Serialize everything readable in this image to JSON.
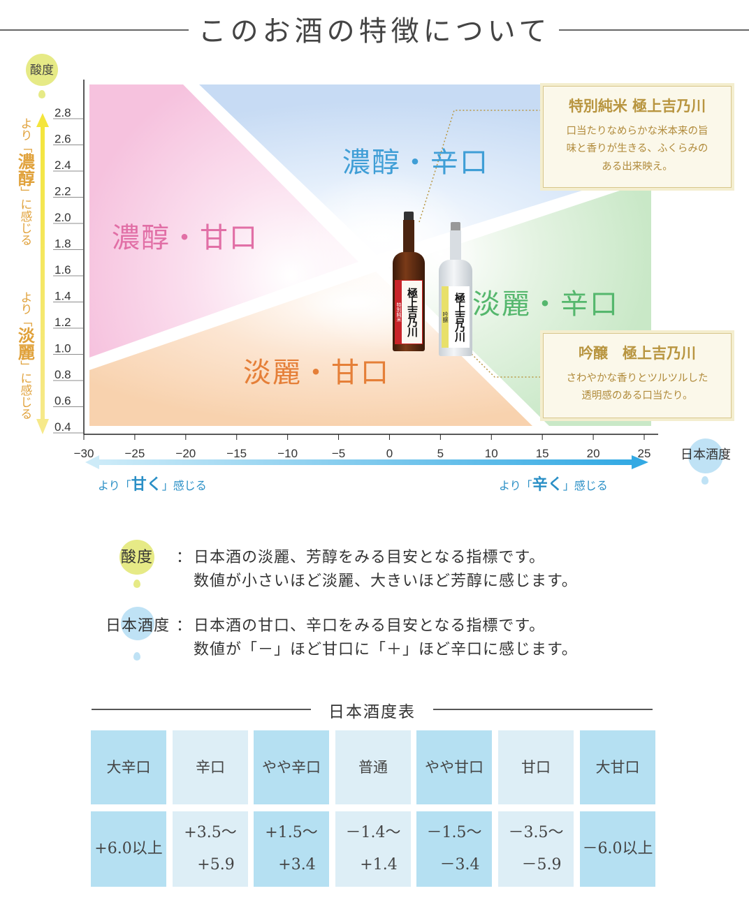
{
  "header": {
    "title": "このお酒の特徴について"
  },
  "y_axis": {
    "name": "酸度",
    "upper_note": {
      "prefix": "より「",
      "emph": "濃醇",
      "suffix": "」に感じる"
    },
    "lower_note": {
      "prefix": "より「",
      "emph": "淡麗",
      "suffix": "」に感じる"
    }
  },
  "x_axis": {
    "name": "日本酒度",
    "left_note": {
      "prefix": "より「",
      "emph": "甘く",
      "suffix": "」感じる"
    },
    "right_note": {
      "prefix": "より「",
      "emph": "辛く",
      "suffix": "」感じる"
    }
  },
  "chart_data": {
    "type": "scatter",
    "title": "",
    "xlabel": "日本酒度",
    "ylabel": "酸度",
    "xlim": [
      -30,
      26
    ],
    "ylim": [
      0.4,
      2.9
    ],
    "xticks": [
      -30,
      -25,
      -20,
      -15,
      -10,
      -5,
      0,
      5,
      10,
      15,
      20,
      25
    ],
    "yticks": [
      "2.8",
      "2.6",
      "2.4",
      "2.2",
      "2.0",
      "1.8",
      "1.6",
      "1.4",
      "1.2",
      "1.0",
      "0.8",
      "0.6",
      "0.4"
    ],
    "regions": [
      {
        "label": "濃醇・甘口",
        "color": "#e16fa6"
      },
      {
        "label": "濃醇・辛口",
        "color": "#3f9ed6"
      },
      {
        "label": "淡麗・辛口",
        "color": "#55b76d"
      },
      {
        "label": "淡麗・甘口",
        "color": "#e57f38"
      }
    ],
    "points": [
      {
        "name": "特別純米 極上吉乃川",
        "x": 3,
        "y": 1.45
      },
      {
        "name": "吟醸　極上吉乃川",
        "x": 7,
        "y": 1.0
      }
    ],
    "grid": true
  },
  "cards": [
    {
      "title": "特別純米 極上吉乃川",
      "lines": [
        "口当たりなめらかな米本来の旨",
        "味と香りが生きる、ふくらみの",
        "ある出来映え。"
      ]
    },
    {
      "title": "吟醸　極上吉乃川",
      "lines": [
        "さわやかな香りとツルツルした",
        "透明感のある口当たり。"
      ]
    }
  ],
  "bottles": [
    {
      "label": "極上吉乃川",
      "side": "特別純米"
    },
    {
      "label": "極上吉乃川",
      "side": "吟醸"
    }
  ],
  "explanations": [
    {
      "term": "酸度",
      "colon": "：",
      "line1": "日本酒の淡麗、芳醇をみる目安となる指標です。",
      "line2": "数値が小さいほど淡麗、大きいほど芳醇に感じます。"
    },
    {
      "term": "日本酒度",
      "colon": "：",
      "line1": "日本酒の甘口、辛口をみる目安となる指標です。",
      "line2": "数値が「－」ほど甘口に「＋」ほど辛口に感じます。"
    }
  ],
  "table": {
    "title": "日本酒度表",
    "headers": [
      "大辛口",
      "辛口",
      "やや辛口",
      "普通",
      "やや甘口",
      "甘口",
      "大甘口"
    ],
    "values": [
      [
        "+6.0以上"
      ],
      [
        "+3.5～",
        "+5.9"
      ],
      [
        "+1.5～",
        "+3.4"
      ],
      [
        "－1.4～",
        "+1.4"
      ],
      [
        "－1.5～",
        "－3.4"
      ],
      [
        "－3.5～",
        "－5.9"
      ],
      [
        "－6.0以上"
      ]
    ]
  },
  "colors": {
    "acidity_drop": "#e6ea86",
    "smv_drop": "#bfe2f5",
    "arrow_yellow": "#f3e34a",
    "arrow_blue": "#5bbde8",
    "gold_text": "#b89540",
    "table_dark": "#b5e0f2",
    "table_light": "#ddeef6"
  }
}
